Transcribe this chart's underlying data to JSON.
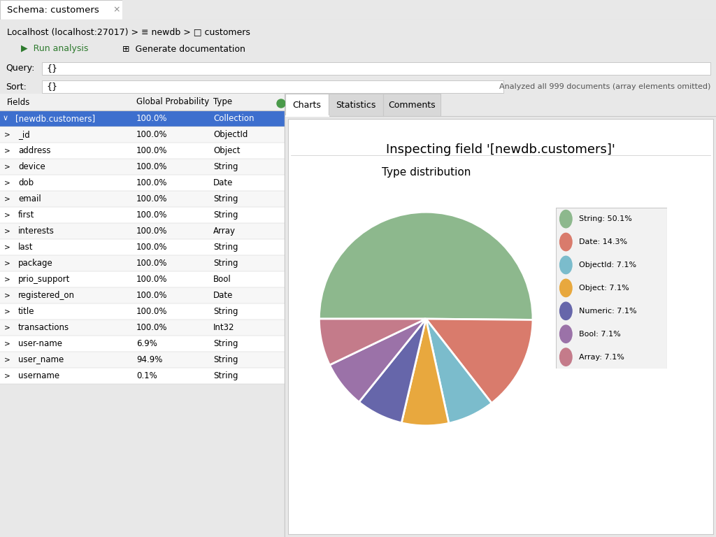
{
  "tab_title": "Schema: customers",
  "breadcrumb": "  Localhost (localhost:27017) > ≡ newdb > □ customers",
  "run_analysis_btn": "Run analysis",
  "generate_doc_btn": "Generate documentation",
  "analyzed_text": "Analyzed all 999 documents (array elements omitted)",
  "tabs": [
    "Charts",
    "Statistics",
    "Comments"
  ],
  "active_tab": "Charts",
  "chart_title": "Inspecting field '[newdb.customers]'",
  "pie_title": "Type distribution",
  "fields_header": [
    "Fields",
    "Global Probability",
    "Type"
  ],
  "fields": [
    {
      "name": "[newdb.customers]",
      "prob": "100.0%",
      "type": "Collection",
      "selected": true,
      "indent": false
    },
    {
      "name": "_id",
      "prob": "100.0%",
      "type": "ObjectId",
      "selected": false,
      "indent": true
    },
    {
      "name": "address",
      "prob": "100.0%",
      "type": "Object",
      "selected": false,
      "indent": true
    },
    {
      "name": "device",
      "prob": "100.0%",
      "type": "String",
      "selected": false,
      "indent": true
    },
    {
      "name": "dob",
      "prob": "100.0%",
      "type": "Date",
      "selected": false,
      "indent": true
    },
    {
      "name": "email",
      "prob": "100.0%",
      "type": "String",
      "selected": false,
      "indent": true
    },
    {
      "name": "first",
      "prob": "100.0%",
      "type": "String",
      "selected": false,
      "indent": true
    },
    {
      "name": "interests",
      "prob": "100.0%",
      "type": "Array",
      "selected": false,
      "indent": true
    },
    {
      "name": "last",
      "prob": "100.0%",
      "type": "String",
      "selected": false,
      "indent": true
    },
    {
      "name": "package",
      "prob": "100.0%",
      "type": "String",
      "selected": false,
      "indent": true
    },
    {
      "name": "prio_support",
      "prob": "100.0%",
      "type": "Bool",
      "selected": false,
      "indent": true
    },
    {
      "name": "registered_on",
      "prob": "100.0%",
      "type": "Date",
      "selected": false,
      "indent": true
    },
    {
      "name": "title",
      "prob": "100.0%",
      "type": "String",
      "selected": false,
      "indent": true
    },
    {
      "name": "transactions",
      "prob": "100.0%",
      "type": "Int32",
      "selected": false,
      "indent": true
    },
    {
      "name": "user-name",
      "prob": "6.9%",
      "type": "String",
      "selected": false,
      "indent": true
    },
    {
      "name": "user_name",
      "prob": "94.9%",
      "type": "String",
      "selected": false,
      "indent": true
    },
    {
      "name": "username",
      "prob": "0.1%",
      "type": "String",
      "selected": false,
      "indent": true
    }
  ],
  "pie_slices": [
    {
      "label": "String",
      "value": 50.1,
      "color": "#8db88d"
    },
    {
      "label": "Date",
      "value": 14.3,
      "color": "#d97b6c"
    },
    {
      "label": "ObjectId",
      "value": 7.1,
      "color": "#7bbccc"
    },
    {
      "label": "Object",
      "value": 7.1,
      "color": "#e8a83e"
    },
    {
      "label": "Numeric",
      "value": 7.1,
      "color": "#6666aa"
    },
    {
      "label": "Bool",
      "value": 7.1,
      "color": "#9b72a8"
    },
    {
      "label": "Array",
      "value": 7.1,
      "color": "#c47b8a"
    }
  ],
  "bg_color": "#e8e8e8",
  "panel_bg": "#ffffff",
  "row_bg": "#ffffff",
  "row_alt_bg": "#f7f7f7",
  "selected_bg": "#3d6fce",
  "selected_text": "#ffffff",
  "border_color": "#c8c8c8",
  "header_row_bg": "#f0f0f0",
  "tab_bar_bg": "#d8d8d8",
  "tab_active_bg": "#ffffff",
  "tab_inactive_bg": "#d8d8d8"
}
